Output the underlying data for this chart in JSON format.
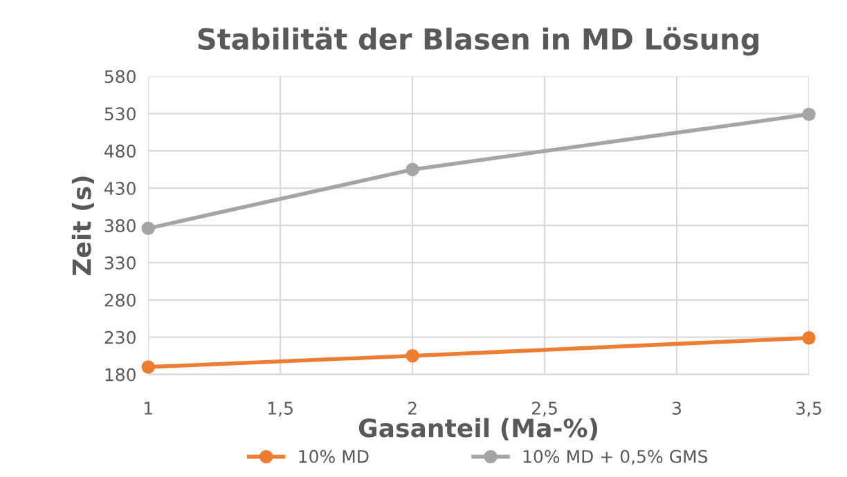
{
  "chart_data": {
    "type": "line",
    "title": "Stabilität der Blasen in MD Lösung",
    "xlabel": "Gasanteil (Ma-%)",
    "ylabel": "Zeit (s)",
    "x": [
      1,
      2,
      3.5
    ],
    "series": [
      {
        "name": "10% MD",
        "color": "#ed7d31",
        "values": [
          190,
          205,
          229
        ]
      },
      {
        "name": "10% MD + 0,5% GMS",
        "color": "#a5a5a5",
        "values": [
          376,
          455,
          529
        ]
      }
    ],
    "xlim": [
      1,
      3.5
    ],
    "xticks": [
      1,
      {
        "value": 1.5,
        "label": "1,5"
      },
      2,
      {
        "value": 2.5,
        "label": "2,5"
      },
      3,
      {
        "value": 3.5,
        "label": "3,5"
      }
    ],
    "ylim": [
      180,
      580
    ],
    "yticks": [
      180,
      230,
      280,
      330,
      380,
      430,
      480,
      530,
      580
    ],
    "grid": true,
    "legend": "bottom",
    "marker": "circle",
    "line_style": "solid"
  }
}
